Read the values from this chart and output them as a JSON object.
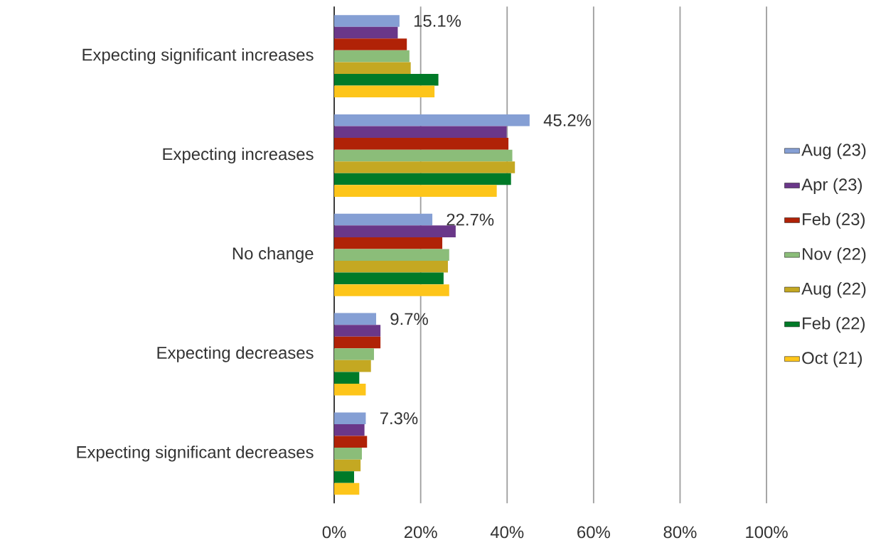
{
  "chart_data": {
    "type": "bar",
    "orientation": "horizontal",
    "categories": [
      "Expecting significant increases",
      "Expecting increases",
      "No change",
      "Expecting decreases",
      "Expecting significant decreases"
    ],
    "series": [
      {
        "name": "Aug (23)",
        "color": "#859fd4",
        "values": [
          15.1,
          45.2,
          22.7,
          9.7,
          7.3
        ],
        "value_labels": [
          "15.1%",
          "45.2%",
          "22.7%",
          "9.7%",
          "7.3%"
        ]
      },
      {
        "name": "Apr (23)",
        "color": "#6a3789",
        "values": [
          14.7,
          39.9,
          28.1,
          10.7,
          7.0
        ]
      },
      {
        "name": "Feb (23)",
        "color": "#b02207",
        "values": [
          16.8,
          40.3,
          25.0,
          10.7,
          7.6
        ]
      },
      {
        "name": "Nov (22)",
        "color": "#8bbd79",
        "values": [
          17.4,
          41.2,
          26.6,
          9.2,
          6.4
        ]
      },
      {
        "name": "Aug (22)",
        "color": "#c4a822",
        "values": [
          17.7,
          41.8,
          26.3,
          8.5,
          6.1
        ]
      },
      {
        "name": "Feb (22)",
        "color": "#007a28",
        "values": [
          24.1,
          40.9,
          25.3,
          5.8,
          4.6
        ]
      },
      {
        "name": "Oct (21)",
        "color": "#fdc51a",
        "values": [
          23.2,
          37.6,
          26.6,
          7.3,
          5.8
        ]
      }
    ],
    "xlim": [
      0,
      100
    ],
    "xticks": [
      {
        "value": 0,
        "label": "0%"
      },
      {
        "value": 20,
        "label": "20%"
      },
      {
        "value": 40,
        "label": "40%"
      },
      {
        "value": 60,
        "label": "60%"
      },
      {
        "value": 80,
        "label": "80%"
      },
      {
        "value": 100,
        "label": "100%"
      }
    ],
    "grid": "x",
    "legend": "right"
  }
}
